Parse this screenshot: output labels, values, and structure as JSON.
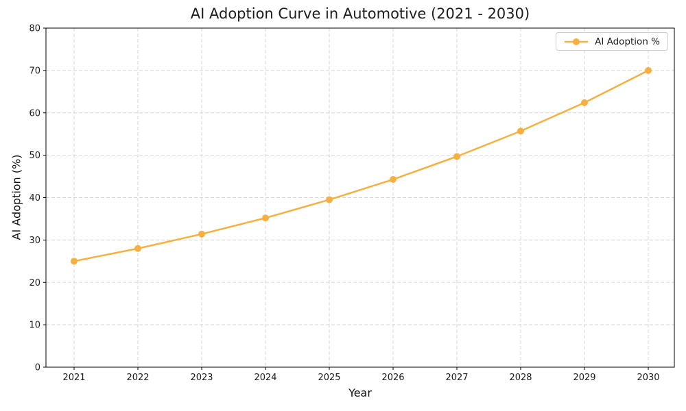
{
  "title": "AI Adoption Curve in Automotive (2021 - 2030)",
  "chart_data": {
    "type": "line",
    "title": "AI Adoption Curve in Automotive (2021 - 2030)",
    "xlabel": "Year",
    "ylabel": "AI Adoption (%)",
    "x": [
      2021,
      2022,
      2023,
      2024,
      2025,
      2026,
      2027,
      2028,
      2029,
      2030
    ],
    "series": [
      {
        "name": "AI Adoption %",
        "values": [
          25.0,
          28.0,
          31.4,
          35.2,
          39.5,
          44.3,
          49.7,
          55.7,
          62.4,
          70.0
        ]
      }
    ],
    "ylim": [
      0,
      80
    ],
    "yticks": [
      0,
      10,
      20,
      30,
      40,
      50,
      60,
      70,
      80
    ],
    "grid": true,
    "grid_style": "dashed",
    "legend_position": "upper right",
    "line_color": "#F5B041",
    "marker": "circle",
    "grid_color": "#d5d5d5",
    "spine_color": "#000000",
    "tick_label_color": "#1a1a1a",
    "background": "#ffffff"
  }
}
